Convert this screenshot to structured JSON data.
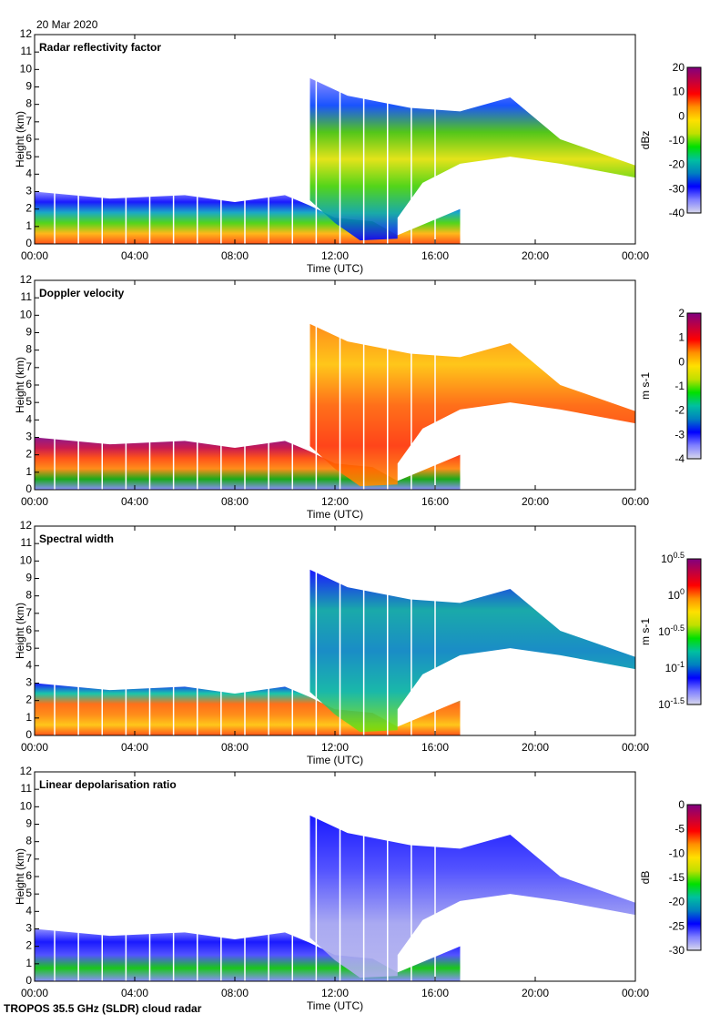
{
  "date_label": "20 Mar 2020",
  "footer": "TROPOS 35.5 GHz (SLDR) cloud radar",
  "chart_data": [
    {
      "type": "heatmap",
      "title": "Radar reflectivity factor",
      "xlabel": "Time (UTC)",
      "ylabel": "Height (km)",
      "xticks": [
        "00:00",
        "04:00",
        "08:00",
        "12:00",
        "16:00",
        "20:00",
        "00:00"
      ],
      "yticks": [
        "0",
        "1",
        "2",
        "3",
        "4",
        "5",
        "6",
        "7",
        "8",
        "9",
        "10",
        "11",
        "12"
      ],
      "ylim": [
        0,
        12
      ],
      "xlim_hours": [
        0,
        24
      ],
      "colorbar": {
        "label": "dBz",
        "ticks": [
          "20",
          "10",
          "0",
          "-10",
          "-20",
          "-30",
          "-40"
        ],
        "range": [
          -40,
          20
        ]
      }
    },
    {
      "type": "heatmap",
      "title": "Doppler velocity",
      "xlabel": "Time (UTC)",
      "ylabel": "Height (km)",
      "xticks": [
        "00:00",
        "04:00",
        "08:00",
        "12:00",
        "16:00",
        "20:00",
        "00:00"
      ],
      "yticks": [
        "0",
        "1",
        "2",
        "3",
        "4",
        "5",
        "6",
        "7",
        "8",
        "9",
        "10",
        "11",
        "12"
      ],
      "ylim": [
        0,
        12
      ],
      "xlim_hours": [
        0,
        24
      ],
      "colorbar": {
        "label": "m s-1",
        "ticks": [
          "2",
          "1",
          "0",
          "-1",
          "-2",
          "-3",
          "-4"
        ],
        "range": [
          -4,
          2
        ]
      }
    },
    {
      "type": "heatmap",
      "title": "Spectral width",
      "xlabel": "Time (UTC)",
      "ylabel": "Height (km)",
      "xticks": [
        "00:00",
        "04:00",
        "08:00",
        "12:00",
        "16:00",
        "20:00",
        "00:00"
      ],
      "yticks": [
        "0",
        "1",
        "2",
        "3",
        "4",
        "5",
        "6",
        "7",
        "8",
        "9",
        "10",
        "11",
        "12"
      ],
      "ylim": [
        0,
        12
      ],
      "xlim_hours": [
        0,
        24
      ],
      "colorbar": {
        "label": "m s-1",
        "ticks": [
          "10^0.5",
          "10^0",
          "10^-0.5",
          "10^-1",
          "10^-1.5"
        ],
        "range": [
          -1.5,
          0.5
        ],
        "scale": "log"
      }
    },
    {
      "type": "heatmap",
      "title": "Linear depolarisation ratio",
      "xlabel": "Time (UTC)",
      "ylabel": "Height (km)",
      "xticks": [
        "00:00",
        "04:00",
        "08:00",
        "12:00",
        "16:00",
        "20:00",
        "00:00"
      ],
      "yticks": [
        "0",
        "1",
        "2",
        "3",
        "4",
        "5",
        "6",
        "7",
        "8",
        "9",
        "10",
        "11",
        "12"
      ],
      "ylim": [
        0,
        12
      ],
      "xlim_hours": [
        0,
        24
      ],
      "colorbar": {
        "label": "dB",
        "ticks": [
          "0",
          "-5",
          "-10",
          "-15",
          "-20",
          "-25",
          "-30"
        ],
        "range": [
          -30,
          0
        ]
      }
    }
  ]
}
